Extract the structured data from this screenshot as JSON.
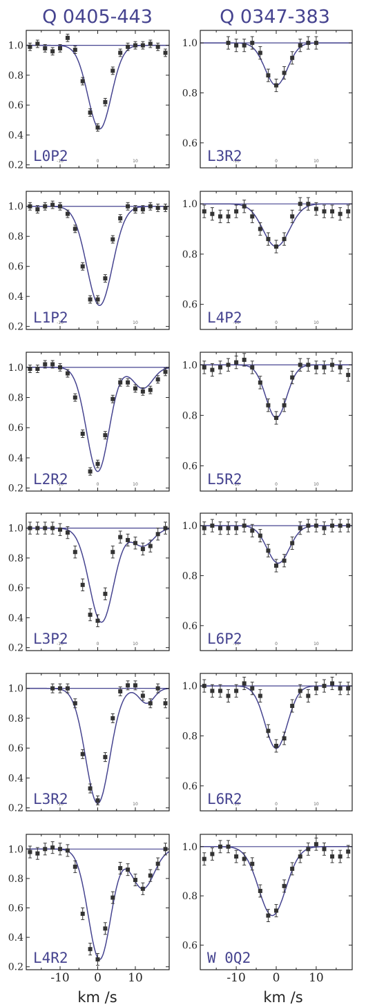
{
  "figure": {
    "column_titles": [
      "Q 0405-443",
      "Q 0347-383"
    ],
    "xlabel": "km /s"
  },
  "colors": {
    "fit_line": "#45438f",
    "points": "#333333",
    "label_text": "#45438f"
  },
  "chart_data": [
    {
      "type": "scatter",
      "column": 0,
      "row": 0,
      "label": "L0P2",
      "xlim": [
        -19,
        19
      ],
      "ylim": [
        0.18,
        1.1
      ],
      "yticks": [
        0.2,
        0.4,
        0.6,
        0.8,
        1.0
      ],
      "yticklabels": [
        "0.2",
        "0.4",
        "0.6",
        "0.8",
        "1.0"
      ],
      "xticks": [
        -10,
        0,
        10
      ],
      "xticklabels": [
        "-10",
        "0",
        "10"
      ],
      "points": {
        "x": [
          -18,
          -16,
          -14,
          -12,
          -10,
          -8,
          -6,
          -4,
          -2,
          0,
          2,
          4,
          6,
          8,
          10,
          12,
          14,
          16,
          18
        ],
        "y": [
          0.99,
          1.01,
          0.98,
          0.96,
          0.98,
          1.05,
          0.97,
          0.76,
          0.55,
          0.45,
          0.62,
          0.83,
          0.95,
          0.99,
          1.0,
          1.0,
          1.01,
          0.99,
          0.95
        ],
        "err": 0.025
      },
      "fit": {
        "model": "gaussian_absorption",
        "components": [
          {
            "center": 0.5,
            "depth": 0.56,
            "sigma": 3.1
          }
        ]
      }
    },
    {
      "type": "scatter",
      "column": 1,
      "row": 0,
      "label": "L3R2",
      "xlim": [
        -19,
        19
      ],
      "ylim": [
        0.5,
        1.05
      ],
      "yticks": [
        0.6,
        0.8,
        1.0
      ],
      "yticklabels": [
        "0.6",
        "0.8",
        "1.0"
      ],
      "xticks": [
        -10,
        0,
        10
      ],
      "xticklabels": [
        "-10",
        "0",
        "10"
      ],
      "points": {
        "x": [
          -12,
          -10,
          -8,
          -6,
          -4,
          -2,
          0,
          2,
          4,
          6,
          8,
          10
        ],
        "y": [
          1.0,
          0.99,
          0.99,
          1.0,
          0.96,
          0.87,
          0.83,
          0.88,
          0.94,
          0.99,
          1.0,
          1.0
        ],
        "err": 0.025
      },
      "fit": {
        "model": "gaussian_absorption",
        "components": [
          {
            "center": 0.0,
            "depth": 0.17,
            "sigma": 2.8
          }
        ]
      }
    },
    {
      "type": "scatter",
      "column": 0,
      "row": 1,
      "label": "L1P2",
      "xlim": [
        -19,
        19
      ],
      "ylim": [
        0.18,
        1.1
      ],
      "yticks": [
        0.2,
        0.4,
        0.6,
        0.8,
        1.0
      ],
      "yticklabels": [
        "0.2",
        "0.4",
        "0.6",
        "0.8",
        "1.0"
      ],
      "xticks": [
        -10,
        0,
        10
      ],
      "xticklabels": [
        "-10",
        "0",
        "10"
      ],
      "points": {
        "x": [
          -18,
          -16,
          -14,
          -12,
          -10,
          -8,
          -6,
          -4,
          -2,
          0,
          2,
          4,
          6,
          8,
          10,
          12,
          14,
          16,
          18
        ],
        "y": [
          1.0,
          0.98,
          1.0,
          1.01,
          1.0,
          0.95,
          0.85,
          0.6,
          0.38,
          0.38,
          0.52,
          0.78,
          0.92,
          1.0,
          0.98,
          0.98,
          1.0,
          0.99,
          0.99
        ],
        "err": 0.025
      },
      "fit": {
        "model": "gaussian_absorption",
        "components": [
          {
            "center": 0.5,
            "depth": 0.66,
            "sigma": 3.4
          }
        ]
      }
    },
    {
      "type": "scatter",
      "column": 1,
      "row": 1,
      "label": "L4P2",
      "xlim": [
        -19,
        19
      ],
      "ylim": [
        0.5,
        1.05
      ],
      "yticks": [
        0.6,
        0.8,
        1.0
      ],
      "yticklabels": [
        "0.6",
        "0.8",
        "1.0"
      ],
      "xticks": [
        -10,
        0,
        10
      ],
      "xticklabels": [
        "-10",
        "0",
        "10"
      ],
      "points": {
        "x": [
          -18,
          -16,
          -14,
          -12,
          -10,
          -8,
          -6,
          -4,
          -2,
          0,
          2,
          4,
          6,
          8,
          10,
          12,
          14,
          16,
          18
        ],
        "y": [
          0.97,
          0.96,
          0.95,
          0.95,
          0.97,
          0.99,
          0.95,
          0.9,
          0.86,
          0.83,
          0.86,
          0.95,
          1.0,
          1.0,
          0.98,
          0.97,
          0.97,
          0.96,
          0.97
        ],
        "err": 0.025
      },
      "fit": {
        "model": "gaussian_absorption",
        "components": [
          {
            "center": 0.0,
            "depth": 0.17,
            "sigma": 3.3
          }
        ]
      }
    },
    {
      "type": "scatter",
      "column": 0,
      "row": 2,
      "label": "L2R2",
      "xlim": [
        -19,
        19
      ],
      "ylim": [
        0.18,
        1.1
      ],
      "yticks": [
        0.2,
        0.4,
        0.6,
        0.8,
        1.0
      ],
      "yticklabels": [
        "0.2",
        "0.4",
        "0.6",
        "0.8",
        "1.0"
      ],
      "xticks": [
        -10,
        0,
        10
      ],
      "xticklabels": [
        "-10",
        "0",
        "10"
      ],
      "points": {
        "x": [
          -18,
          -16,
          -14,
          -12,
          -10,
          -8,
          -6,
          -4,
          -2,
          0,
          2,
          4,
          6,
          8,
          10,
          12,
          14,
          16,
          18
        ],
        "y": [
          0.99,
          0.99,
          1.02,
          1.02,
          1.0,
          0.96,
          0.8,
          0.56,
          0.31,
          0.36,
          0.55,
          0.79,
          0.9,
          0.9,
          0.86,
          0.84,
          0.85,
          0.92,
          0.97
        ],
        "err": 0.025
      },
      "fit": {
        "model": "gaussian_absorption",
        "components": [
          {
            "center": 0.0,
            "depth": 0.69,
            "sigma": 3.0
          },
          {
            "center": 12.0,
            "depth": 0.14,
            "sigma": 2.6
          }
        ]
      }
    },
    {
      "type": "scatter",
      "column": 1,
      "row": 2,
      "label": "L5R2",
      "xlim": [
        -19,
        19
      ],
      "ylim": [
        0.5,
        1.05
      ],
      "yticks": [
        0.6,
        0.8,
        1.0
      ],
      "yticklabels": [
        "0.6",
        "0.8",
        "1.0"
      ],
      "xticks": [
        -10,
        0,
        10
      ],
      "xticklabels": [
        "-10",
        "0",
        "10"
      ],
      "points": {
        "x": [
          -18,
          -16,
          -14,
          -12,
          -10,
          -8,
          -6,
          -4,
          -2,
          0,
          2,
          4,
          6,
          8,
          10,
          12,
          14,
          16,
          18
        ],
        "y": [
          0.99,
          0.98,
          0.99,
          1.0,
          1.01,
          1.02,
          0.99,
          0.93,
          0.84,
          0.79,
          0.84,
          0.95,
          1.0,
          1.0,
          0.99,
          0.99,
          1.0,
          0.99,
          0.96
        ],
        "err": 0.025
      },
      "fit": {
        "model": "gaussian_absorption",
        "components": [
          {
            "center": 0.0,
            "depth": 0.21,
            "sigma": 2.6
          }
        ]
      }
    },
    {
      "type": "scatter",
      "column": 0,
      "row": 3,
      "label": "L3P2",
      "xlim": [
        -19,
        19
      ],
      "ylim": [
        0.18,
        1.1
      ],
      "yticks": [
        0.2,
        0.4,
        0.6,
        0.8,
        1.0
      ],
      "yticklabels": [
        "0.2",
        "0.4",
        "0.6",
        "0.8",
        "1.0"
      ],
      "xticks": [
        -10,
        0,
        10
      ],
      "xticklabels": [
        "-10",
        "0",
        "10"
      ],
      "points": {
        "x": [
          -18,
          -16,
          -14,
          -12,
          -10,
          -8,
          -6,
          -4,
          -2,
          0,
          2,
          4,
          6,
          8,
          10,
          12,
          14,
          16,
          18
        ],
        "y": [
          1.0,
          1.0,
          1.0,
          1.0,
          0.99,
          0.97,
          0.84,
          0.62,
          0.42,
          0.38,
          0.56,
          0.84,
          0.94,
          0.92,
          0.9,
          0.86,
          0.88,
          0.96,
          1.0
        ],
        "err": 0.04
      },
      "fit": {
        "model": "gaussian_absorption",
        "components": [
          {
            "center": 1.0,
            "depth": 0.63,
            "sigma": 3.2
          },
          {
            "center": 12.0,
            "depth": 0.12,
            "sigma": 2.8
          }
        ]
      }
    },
    {
      "type": "scatter",
      "column": 1,
      "row": 3,
      "label": "L6P2",
      "xlim": [
        -19,
        19
      ],
      "ylim": [
        0.5,
        1.05
      ],
      "yticks": [
        0.6,
        0.8,
        1.0
      ],
      "yticklabels": [
        "0.6",
        "0.8",
        "1.0"
      ],
      "xticks": [
        -10,
        0,
        10
      ],
      "xticklabels": [
        "-10",
        "0",
        "10"
      ],
      "points": {
        "x": [
          -18,
          -16,
          -14,
          -12,
          -10,
          -8,
          -6,
          -4,
          -2,
          0,
          2,
          4,
          6,
          8,
          10,
          12,
          14,
          16,
          18
        ],
        "y": [
          0.99,
          1.0,
          0.99,
          0.99,
          0.99,
          1.0,
          0.98,
          0.96,
          0.9,
          0.84,
          0.86,
          0.93,
          0.99,
          1.0,
          1.0,
          0.99,
          1.0,
          1.0,
          1.0
        ],
        "err": 0.025
      },
      "fit": {
        "model": "gaussian_absorption",
        "components": [
          {
            "center": 0.5,
            "depth": 0.15,
            "sigma": 2.8
          }
        ]
      }
    },
    {
      "type": "scatter",
      "column": 0,
      "row": 4,
      "label": "L3R2",
      "xlim": [
        -19,
        19
      ],
      "ylim": [
        0.18,
        1.1
      ],
      "yticks": [
        0.2,
        0.4,
        0.6,
        0.8,
        1.0
      ],
      "yticklabels": [
        "0.2",
        "0.4",
        "0.6",
        "0.8",
        "1.0"
      ],
      "xticks": [
        -10,
        0,
        10
      ],
      "xticklabels": [
        "-10",
        "0",
        "10"
      ],
      "points": {
        "x": [
          -12,
          -10,
          -8,
          -6,
          -4,
          -2,
          0,
          2,
          4,
          6,
          8,
          10,
          12,
          14,
          16,
          18
        ],
        "y": [
          1.0,
          1.0,
          1.0,
          0.9,
          0.56,
          0.33,
          0.25,
          0.54,
          0.8,
          0.98,
          1.02,
          1.02,
          0.95,
          0.9,
          1.0,
          0.9
        ],
        "err": 0.03
      },
      "fit": {
        "model": "gaussian_absorption",
        "components": [
          {
            "center": 0.0,
            "depth": 0.77,
            "sigma": 3.2
          },
          {
            "center": 13.0,
            "depth": 0.1,
            "sigma": 2.0
          }
        ]
      }
    },
    {
      "type": "scatter",
      "column": 1,
      "row": 4,
      "label": "L6R2",
      "xlim": [
        -19,
        19
      ],
      "ylim": [
        0.5,
        1.05
      ],
      "yticks": [
        0.6,
        0.8,
        1.0
      ],
      "yticklabels": [
        "0.6",
        "0.8",
        "1.0"
      ],
      "xticks": [
        -10,
        0,
        10
      ],
      "xticklabels": [
        "-10",
        "0",
        "10"
      ],
      "points": {
        "x": [
          -18,
          -16,
          -14,
          -12,
          -10,
          -8,
          -6,
          -4,
          -2,
          0,
          2,
          4,
          6,
          8,
          10,
          12,
          14,
          16,
          18
        ],
        "y": [
          1.0,
          0.98,
          0.98,
          0.96,
          0.98,
          1.01,
          0.99,
          0.96,
          0.82,
          0.76,
          0.79,
          0.92,
          0.98,
          0.96,
          0.99,
          1.0,
          1.01,
          0.99,
          0.99
        ],
        "err": 0.025
      },
      "fit": {
        "model": "gaussian_absorption",
        "components": [
          {
            "center": 0.0,
            "depth": 0.25,
            "sigma": 2.8
          }
        ]
      }
    },
    {
      "type": "scatter",
      "column": 0,
      "row": 5,
      "label": "L4R2",
      "xlim": [
        -19,
        19
      ],
      "ylim": [
        0.18,
        1.1
      ],
      "yticks": [
        0.2,
        0.4,
        0.6,
        0.8,
        1.0
      ],
      "yticklabels": [
        "0.2",
        "0.4",
        "0.6",
        "0.8",
        "1.0"
      ],
      "xticks": [
        -10,
        0,
        10
      ],
      "xticklabels": [
        "-10",
        "0",
        "10"
      ],
      "points": {
        "x": [
          -18,
          -16,
          -14,
          -12,
          -10,
          -8,
          -6,
          -4,
          -2,
          0,
          2,
          4,
          6,
          8,
          10,
          12,
          14,
          16,
          18
        ],
        "y": [
          0.98,
          0.97,
          1.0,
          1.01,
          1.0,
          0.99,
          0.88,
          0.56,
          0.32,
          0.25,
          0.46,
          0.67,
          0.87,
          0.86,
          0.79,
          0.73,
          0.82,
          0.9,
          1.0
        ],
        "err": 0.04
      },
      "fit": {
        "model": "gaussian_absorption",
        "components": [
          {
            "center": 0.5,
            "depth": 0.75,
            "sigma": 3.0
          },
          {
            "center": 12.0,
            "depth": 0.27,
            "sigma": 3.0
          }
        ]
      }
    },
    {
      "type": "scatter",
      "column": 1,
      "row": 5,
      "label": "W 0Q2",
      "xlim": [
        -19,
        19
      ],
      "ylim": [
        0.5,
        1.05
      ],
      "yticks": [
        0.6,
        0.8,
        1.0
      ],
      "yticklabels": [
        "0.6",
        "0.8",
        "1.0"
      ],
      "xticks": [
        -10,
        0,
        10
      ],
      "xticklabels": [
        "-10",
        "0",
        "10"
      ],
      "points": {
        "x": [
          -18,
          -16,
          -14,
          -12,
          -10,
          -8,
          -6,
          -4,
          -2,
          0,
          2,
          4,
          6,
          8,
          10,
          12,
          14,
          16,
          18
        ],
        "y": [
          0.95,
          0.97,
          1.0,
          1.0,
          0.96,
          0.95,
          0.93,
          0.82,
          0.72,
          0.74,
          0.84,
          0.91,
          0.96,
          0.99,
          1.01,
          0.99,
          0.96,
          0.96,
          0.98
        ],
        "err": 0.025
      },
      "fit": {
        "model": "gaussian_absorption",
        "components": [
          {
            "center": -1.0,
            "depth": 0.28,
            "sigma": 3.4
          }
        ]
      }
    }
  ]
}
